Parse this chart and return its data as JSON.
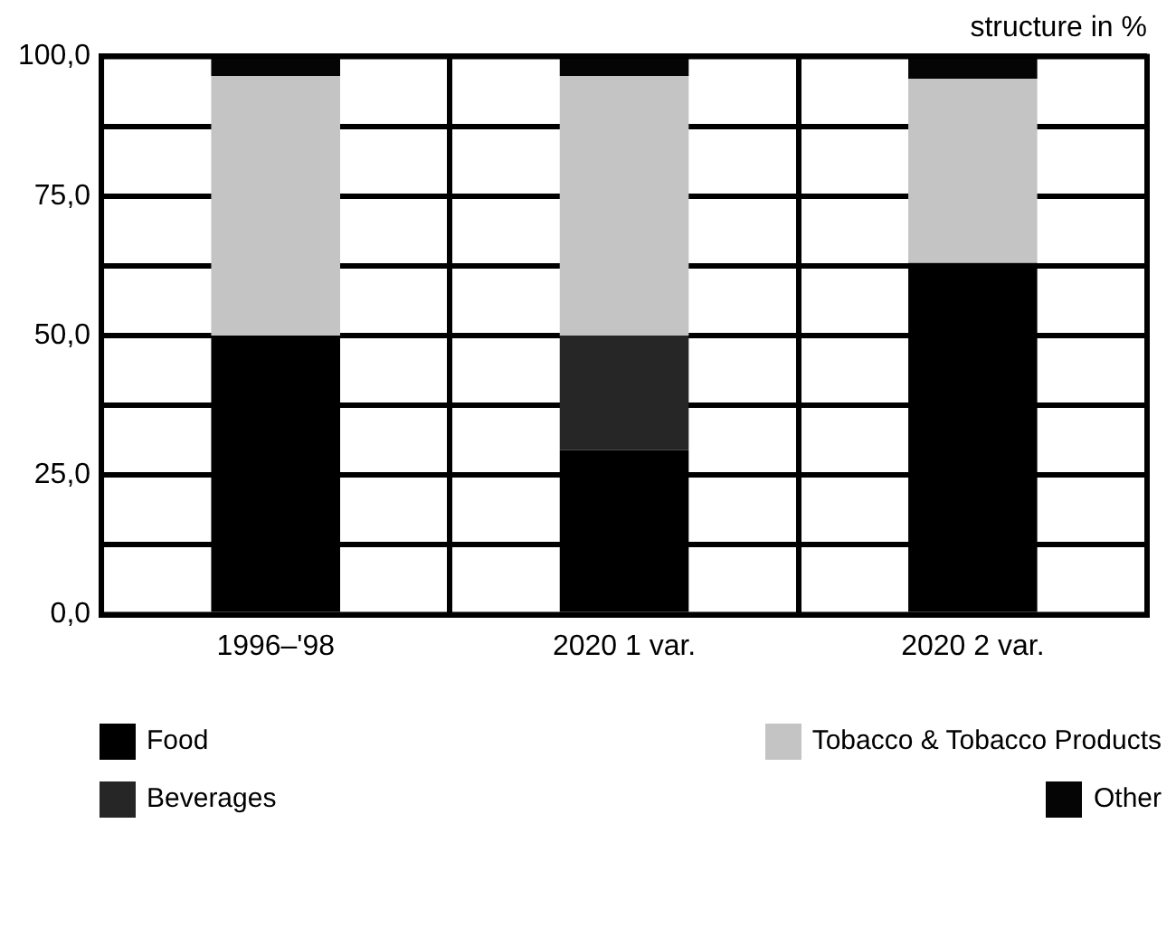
{
  "chart_data": {
    "type": "bar",
    "stacked": true,
    "title": "structure in %",
    "categories": [
      "1996–'98",
      "2020 1 var.",
      "2020 2 var."
    ],
    "series": [
      {
        "name": "Food",
        "color": "#000000",
        "values": [
          50,
          29.5,
          63
        ]
      },
      {
        "name": "Beverages",
        "color": "#262626",
        "values": [
          0,
          20.5,
          0
        ]
      },
      {
        "name": "Tobacco & Tobacco Products",
        "color": "#c4c4c4",
        "values": [
          46.5,
          46.5,
          33
        ]
      },
      {
        "name": "Other",
        "color": "#050505",
        "values": [
          3.5,
          3.5,
          4
        ]
      }
    ],
    "ylim": [
      0,
      100
    ],
    "yticks": [
      {
        "value": 0,
        "label": "0,0"
      },
      {
        "value": 12.5,
        "label": null
      },
      {
        "value": 25,
        "label": "25,0"
      },
      {
        "value": 37.5,
        "label": null
      },
      {
        "value": 50,
        "label": "50,0"
      },
      {
        "value": 62.5,
        "label": null
      },
      {
        "value": 75,
        "label": "75,0"
      },
      {
        "value": 87.5,
        "label": null
      },
      {
        "value": 100,
        "label": "100,0"
      }
    ],
    "grid": true,
    "legend": "bottom"
  }
}
